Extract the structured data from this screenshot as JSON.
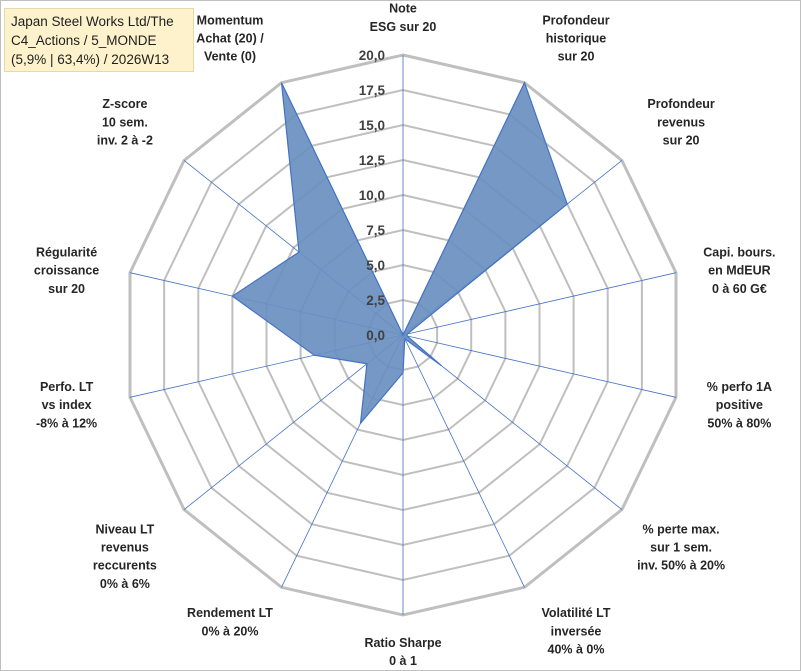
{
  "chart_data": {
    "type": "radar",
    "title": [
      "Japan Steel Works Ltd/The",
      "C4_Actions / 5_MONDE",
      "(5,9% | 63,4%) / 2026W13"
    ],
    "rmin": 0,
    "rmax": 20,
    "tick_labels": [
      "0,0",
      "2,5",
      "5,0",
      "7,5",
      "10,0",
      "12,5",
      "15,0",
      "17,5",
      "20,0"
    ],
    "ticks": [
      0,
      2.5,
      5,
      7.5,
      10,
      12.5,
      15,
      17.5,
      20
    ],
    "axes": [
      {
        "label": [
          "Note",
          "ESG sur 20"
        ],
        "value": 0
      },
      {
        "label": [
          "Profondeur",
          "historique",
          "sur 20"
        ],
        "value": 20
      },
      {
        "label": [
          "Profondeur",
          "revenus",
          "sur 20"
        ],
        "value": 15
      },
      {
        "label": [
          "Capi. bours.",
          "en MdEUR",
          "0 à 60 G€"
        ],
        "value": 0.3
      },
      {
        "label": [
          "% perfo 1A",
          "positive",
          "50% à 80%"
        ],
        "value": 0.3
      },
      {
        "label": [
          "% perte max.",
          "sur 1 sem.",
          "inv. 50% à 20%"
        ],
        "value": 3.5
      },
      {
        "label": [
          "Volatilité LT",
          "inversée",
          "40% à 0%"
        ],
        "value": 0.3
      },
      {
        "label": [
          "Ratio Sharpe",
          "0 à 1"
        ],
        "value": 2.7
      },
      {
        "label": [
          "Rendement LT",
          "0% à 20%"
        ],
        "value": 7
      },
      {
        "label": [
          "Niveau LT",
          "revenus",
          "reccurents",
          "0% à 6%"
        ],
        "value": 3.3
      },
      {
        "label": [
          "Perfo. LT",
          "vs index",
          "-8% à 12%"
        ],
        "value": 6.5
      },
      {
        "label": [
          "Régularité",
          "croissance",
          "sur 20"
        ],
        "value": 12.5
      },
      {
        "label": [
          "Z-score",
          "10 sem.",
          "inv. 2 à -2"
        ],
        "value": 9.5
      },
      {
        "label": [
          "Momentum",
          "Achat (20) /",
          "Vente (0)"
        ],
        "value": 20
      }
    ],
    "colors": {
      "fill": "#6a8fc0",
      "line": "#4472c4",
      "grid": "#bfbfbf",
      "spoke": "#4472c4"
    }
  }
}
